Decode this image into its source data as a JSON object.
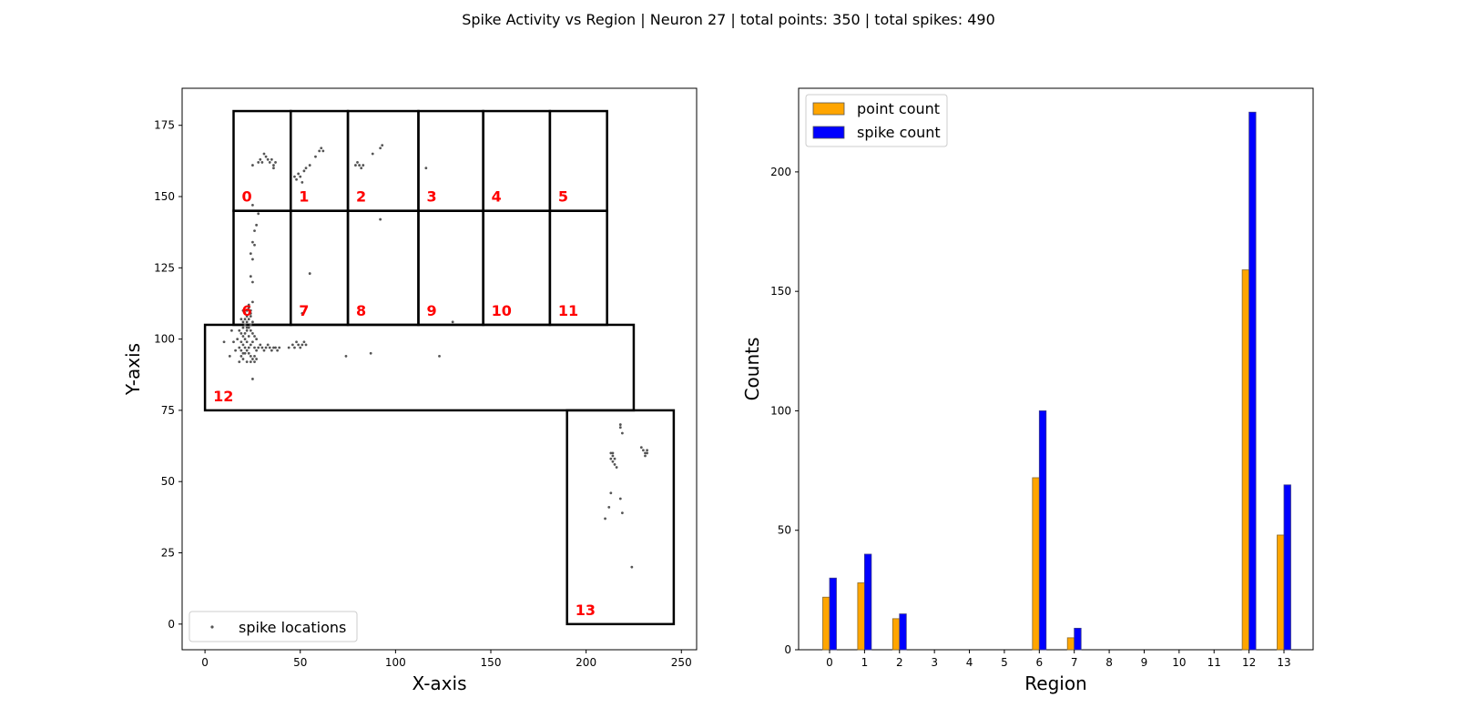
{
  "figure": {
    "title": "Spike Activity vs Region | Neuron 27 | total points: 350 | total spikes: 490"
  },
  "chart_data": [
    {
      "type": "scatter",
      "xlabel": "X-axis",
      "ylabel": "Y-axis",
      "xlim": [
        -12,
        258
      ],
      "ylim": [
        -9,
        188
      ],
      "xticks": [
        0,
        50,
        100,
        150,
        200,
        250
      ],
      "yticks": [
        0,
        25,
        50,
        75,
        100,
        125,
        150,
        175
      ],
      "legend": {
        "placement": "lower-left",
        "label": "spike locations"
      },
      "colors": {
        "points": "#555555",
        "regions": "#000000",
        "region_labels": "#ff0000"
      },
      "regions": [
        {
          "id": "0",
          "x": [
            15,
            45
          ],
          "y": [
            145,
            180
          ]
        },
        {
          "id": "1",
          "x": [
            45,
            75
          ],
          "y": [
            145,
            180
          ]
        },
        {
          "id": "2",
          "x": [
            75,
            112
          ],
          "y": [
            145,
            180
          ]
        },
        {
          "id": "3",
          "x": [
            112,
            146
          ],
          "y": [
            145,
            180
          ]
        },
        {
          "id": "4",
          "x": [
            146,
            181
          ],
          "y": [
            145,
            180
          ]
        },
        {
          "id": "5",
          "x": [
            181,
            211
          ],
          "y": [
            145,
            180
          ]
        },
        {
          "id": "6",
          "x": [
            15,
            45
          ],
          "y": [
            105,
            145
          ]
        },
        {
          "id": "7",
          "x": [
            45,
            75
          ],
          "y": [
            105,
            145
          ]
        },
        {
          "id": "8",
          "x": [
            75,
            112
          ],
          "y": [
            105,
            145
          ]
        },
        {
          "id": "9",
          "x": [
            112,
            146
          ],
          "y": [
            105,
            145
          ]
        },
        {
          "id": "10",
          "x": [
            146,
            181
          ],
          "y": [
            105,
            145
          ]
        },
        {
          "id": "11",
          "x": [
            181,
            211
          ],
          "y": [
            105,
            145
          ]
        },
        {
          "id": "12",
          "x": [
            0,
            225
          ],
          "y": [
            75,
            105
          ]
        },
        {
          "id": "13",
          "x": [
            190,
            246
          ],
          "y": [
            0,
            75
          ]
        }
      ],
      "points": [
        [
          25,
          161
        ],
        [
          30,
          162
        ],
        [
          31,
          165
        ],
        [
          32,
          164
        ],
        [
          33,
          163
        ],
        [
          34,
          162
        ],
        [
          35,
          163
        ],
        [
          36,
          161
        ],
        [
          37,
          162
        ],
        [
          28,
          162
        ],
        [
          29,
          163
        ],
        [
          36,
          160
        ],
        [
          47,
          157
        ],
        [
          48,
          156
        ],
        [
          49,
          158
        ],
        [
          50,
          157
        ],
        [
          52,
          159
        ],
        [
          53,
          160
        ],
        [
          55,
          161
        ],
        [
          58,
          164
        ],
        [
          60,
          166
        ],
        [
          61,
          167
        ],
        [
          62,
          166
        ],
        [
          51,
          155
        ],
        [
          79,
          161
        ],
        [
          80,
          162
        ],
        [
          81,
          161
        ],
        [
          82,
          160
        ],
        [
          83,
          161
        ],
        [
          88,
          165
        ],
        [
          92,
          167
        ],
        [
          93,
          168
        ],
        [
          116,
          160
        ],
        [
          25,
          147
        ],
        [
          27,
          140
        ],
        [
          28,
          144
        ],
        [
          26,
          138
        ],
        [
          25,
          134
        ],
        [
          26,
          133
        ],
        [
          24,
          130
        ],
        [
          25,
          128
        ],
        [
          24,
          122
        ],
        [
          25,
          120
        ],
        [
          23,
          111
        ],
        [
          24,
          110
        ],
        [
          25,
          113
        ],
        [
          55,
          123
        ],
        [
          51,
          109
        ],
        [
          92,
          142
        ],
        [
          130,
          106
        ],
        [
          18,
          103
        ],
        [
          19,
          102
        ],
        [
          20,
          101
        ],
        [
          21,
          100
        ],
        [
          22,
          99
        ],
        [
          19,
          99
        ],
        [
          20,
          98
        ],
        [
          21,
          97
        ],
        [
          22,
          96
        ],
        [
          23,
          95
        ],
        [
          24,
          94
        ],
        [
          25,
          93
        ],
        [
          26,
          92
        ],
        [
          27,
          93
        ],
        [
          22,
          92
        ],
        [
          19,
          94
        ],
        [
          20,
          93
        ],
        [
          21,
          95
        ],
        [
          23,
          97
        ],
        [
          24,
          98
        ],
        [
          25,
          99
        ],
        [
          26,
          97
        ],
        [
          27,
          96
        ],
        [
          28,
          97
        ],
        [
          29,
          98
        ],
        [
          30,
          97
        ],
        [
          31,
          96
        ],
        [
          32,
          97
        ],
        [
          33,
          98
        ],
        [
          34,
          97
        ],
        [
          35,
          96
        ],
        [
          36,
          97
        ],
        [
          37,
          97
        ],
        [
          38,
          96
        ],
        [
          39,
          97
        ],
        [
          20,
          104
        ],
        [
          21,
          105
        ],
        [
          22,
          106
        ],
        [
          23,
          107
        ],
        [
          24,
          108
        ],
        [
          21,
          107
        ],
        [
          22,
          108
        ],
        [
          23,
          104
        ],
        [
          24,
          103
        ],
        [
          25,
          102
        ],
        [
          20,
          110
        ],
        [
          21,
          109
        ],
        [
          22,
          110
        ],
        [
          23,
          112
        ],
        [
          24,
          109
        ],
        [
          17,
          100
        ],
        [
          16,
          96
        ],
        [
          15,
          99
        ],
        [
          14,
          103
        ],
        [
          13,
          94
        ],
        [
          10,
          99
        ],
        [
          18,
          97
        ],
        [
          19,
          96
        ],
        [
          26,
          101
        ],
        [
          27,
          100
        ],
        [
          22,
          103
        ],
        [
          21,
          102
        ],
        [
          20,
          106
        ],
        [
          19,
          107
        ],
        [
          22,
          104
        ],
        [
          23,
          101
        ],
        [
          24,
          105
        ],
        [
          25,
          106
        ],
        [
          20,
          95
        ],
        [
          18,
          92
        ],
        [
          24,
          92
        ],
        [
          26,
          94
        ],
        [
          25,
          86
        ],
        [
          46,
          98
        ],
        [
          47,
          97
        ],
        [
          48,
          99
        ],
        [
          49,
          98
        ],
        [
          50,
          97
        ],
        [
          51,
          98
        ],
        [
          52,
          99
        ],
        [
          53,
          98
        ],
        [
          44,
          97
        ],
        [
          74,
          94
        ],
        [
          87,
          95
        ],
        [
          123,
          94
        ],
        [
          218,
          69
        ],
        [
          219,
          67
        ],
        [
          213,
          60
        ],
        [
          214,
          59
        ],
        [
          215,
          58
        ],
        [
          214,
          57
        ],
        [
          215,
          56
        ],
        [
          216,
          55
        ],
        [
          213,
          58
        ],
        [
          214,
          60
        ],
        [
          229,
          62
        ],
        [
          230,
          61
        ],
        [
          231,
          60
        ],
        [
          232,
          61
        ],
        [
          232,
          60
        ],
        [
          231,
          59
        ],
        [
          213,
          46
        ],
        [
          218,
          44
        ],
        [
          219,
          39
        ],
        [
          212,
          41
        ],
        [
          210,
          37
        ],
        [
          224,
          20
        ],
        [
          218,
          70
        ]
      ]
    },
    {
      "type": "bar",
      "xlabel": "Region",
      "ylabel": "Counts",
      "ylim": [
        0,
        235
      ],
      "yticks": [
        0,
        50,
        100,
        150,
        200
      ],
      "categories": [
        "0",
        "1",
        "2",
        "3",
        "4",
        "5",
        "6",
        "7",
        "8",
        "9",
        "10",
        "11",
        "12",
        "13"
      ],
      "legend": {
        "placement": "top-left"
      },
      "series": [
        {
          "name": "point count",
          "color": "#ffa500",
          "values": [
            22,
            28,
            13,
            0,
            0,
            0,
            72,
            5,
            0,
            0,
            0,
            0,
            159,
            48
          ]
        },
        {
          "name": "spike count",
          "color": "#0000ff",
          "values": [
            30,
            40,
            15,
            0,
            0,
            0,
            100,
            9,
            0,
            0,
            0,
            0,
            225,
            69
          ]
        }
      ]
    }
  ]
}
